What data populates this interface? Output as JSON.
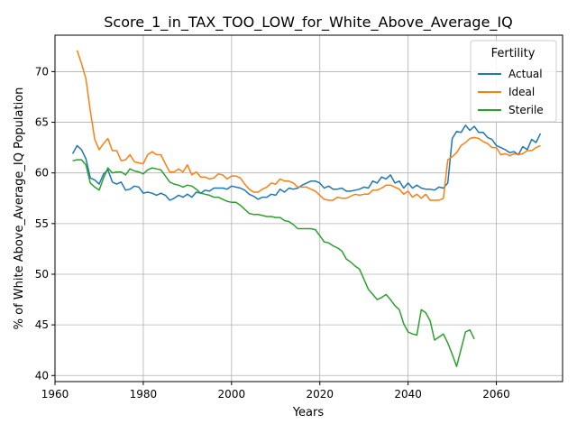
{
  "chart_data": {
    "type": "line",
    "title": "Score_1_in_TAX_TOO_LOW_for_White_Above_Average_IQ",
    "xlabel": "Years",
    "ylabel": "% of White Above_Average_IQ Population",
    "xlim": [
      1960,
      2075
    ],
    "ylim": [
      39.4,
      73.6
    ],
    "xticks": [
      1960,
      1980,
      2000,
      2020,
      2040,
      2060
    ],
    "yticks": [
      40,
      45,
      50,
      55,
      60,
      65,
      70
    ],
    "grid": true,
    "legend": {
      "title": "Fertility",
      "placement": "top-right"
    },
    "series": [
      {
        "name": "Actual",
        "color": "#1f77b4",
        "x": [
          1964,
          1965,
          1966,
          1967,
          1968,
          1969,
          1970,
          1971,
          1972,
          1973,
          1974,
          1975,
          1976,
          1977,
          1978,
          1979,
          1980,
          1981,
          1982,
          1983,
          1984,
          1985,
          1986,
          1987,
          1988,
          1989,
          1990,
          1991,
          1992,
          1993,
          1994,
          1995,
          1996,
          1997,
          1998,
          1999,
          2000,
          2001,
          2002,
          2003,
          2004,
          2005,
          2006,
          2007,
          2008,
          2009,
          2010,
          2011,
          2012,
          2013,
          2014,
          2015,
          2016,
          2017,
          2018,
          2019,
          2020,
          2021,
          2022,
          2023,
          2024,
          2025,
          2026,
          2027,
          2028,
          2029,
          2030,
          2031,
          2032,
          2033,
          2034,
          2035,
          2036,
          2037,
          2038,
          2039,
          2040,
          2041,
          2042,
          2043,
          2044,
          2045,
          2046,
          2047,
          2048,
          2049,
          2050,
          2051,
          2052,
          2053,
          2054,
          2055,
          2056,
          2057,
          2058,
          2059,
          2060,
          2061,
          2062,
          2063,
          2064,
          2065,
          2066,
          2067,
          2068,
          2069,
          2070
        ],
        "y": [
          61.9,
          62.7,
          62.3,
          61.4,
          59.5,
          59.3,
          58.9,
          59.9,
          60.3,
          59.1,
          58.9,
          59.1,
          58.3,
          58.4,
          58.7,
          58.6,
          58.0,
          58.1,
          58.0,
          57.8,
          58.0,
          57.8,
          57.3,
          57.5,
          57.8,
          57.6,
          57.9,
          57.6,
          58.1,
          58.0,
          58.3,
          58.2,
          58.5,
          58.5,
          58.5,
          58.4,
          58.7,
          58.6,
          58.5,
          58.3,
          57.9,
          57.7,
          57.4,
          57.6,
          57.6,
          57.9,
          57.8,
          58.4,
          58.1,
          58.5,
          58.4,
          58.5,
          58.8,
          59.0,
          59.2,
          59.2,
          59.0,
          58.5,
          58.7,
          58.4,
          58.4,
          58.5,
          58.2,
          58.2,
          58.3,
          58.4,
          58.6,
          58.5,
          59.2,
          59.0,
          59.6,
          59.4,
          59.8,
          59.0,
          59.2,
          58.5,
          59.0,
          58.5,
          58.8,
          58.5,
          58.4,
          58.4,
          58.3,
          58.6,
          58.5,
          59.0,
          63.4,
          64.1,
          64.0,
          64.7,
          64.2,
          64.6,
          64.0,
          64.0,
          63.5,
          63.3,
          62.7,
          62.5,
          62.3,
          62.0,
          62.1,
          61.8,
          62.6,
          62.3,
          63.3,
          63.0,
          63.9
        ]
      },
      {
        "name": "Ideal",
        "color": "#ff7f0e",
        "x": [
          1965,
          1966,
          1967,
          1968,
          1969,
          1970,
          1971,
          1972,
          1973,
          1974,
          1975,
          1976,
          1977,
          1978,
          1979,
          1980,
          1981,
          1982,
          1983,
          1984,
          1985,
          1986,
          1987,
          1988,
          1989,
          1990,
          1991,
          1992,
          1993,
          1994,
          1995,
          1996,
          1997,
          1998,
          1999,
          2000,
          2001,
          2002,
          2003,
          2004,
          2005,
          2006,
          2007,
          2008,
          2009,
          2010,
          2011,
          2012,
          2013,
          2014,
          2015,
          2016,
          2017,
          2018,
          2019,
          2020,
          2021,
          2022,
          2023,
          2024,
          2025,
          2026,
          2027,
          2028,
          2029,
          2030,
          2031,
          2032,
          2033,
          2034,
          2035,
          2036,
          2037,
          2038,
          2039,
          2040,
          2041,
          2042,
          2043,
          2044,
          2045,
          2046,
          2047,
          2048,
          2049,
          2050,
          2051,
          2052,
          2053,
          2054,
          2055,
          2056,
          2057,
          2058,
          2059,
          2060,
          2061,
          2062,
          2063,
          2064,
          2065,
          2066,
          2067,
          2068,
          2069,
          2070
        ],
        "y": [
          72.1,
          70.8,
          69.3,
          66.1,
          63.3,
          62.3,
          62.9,
          63.4,
          62.2,
          62.2,
          61.2,
          61.3,
          61.8,
          61.1,
          61.0,
          60.9,
          61.8,
          62.1,
          61.8,
          61.8,
          60.9,
          60.1,
          60.1,
          60.4,
          60.1,
          60.8,
          59.8,
          60.1,
          59.6,
          59.6,
          59.4,
          59.5,
          59.9,
          59.8,
          59.4,
          59.7,
          59.7,
          59.5,
          58.9,
          58.4,
          58.1,
          58.1,
          58.4,
          58.6,
          59.0,
          58.9,
          59.4,
          59.2,
          59.2,
          59.0,
          58.6,
          58.6,
          58.6,
          58.4,
          58.2,
          57.8,
          57.4,
          57.3,
          57.3,
          57.6,
          57.5,
          57.5,
          57.7,
          57.9,
          57.8,
          57.9,
          57.9,
          58.3,
          58.3,
          58.5,
          58.8,
          58.8,
          58.6,
          58.4,
          57.9,
          58.2,
          57.6,
          57.9,
          57.5,
          57.9,
          57.3,
          57.3,
          57.3,
          57.5,
          61.3,
          61.6,
          62.0,
          62.7,
          63.0,
          63.4,
          63.5,
          63.4,
          63.1,
          62.9,
          62.5,
          62.5,
          61.8,
          61.9,
          61.7,
          61.9,
          61.8,
          61.9,
          62.2,
          62.2,
          62.5,
          62.7
        ]
      },
      {
        "name": "Sterile",
        "color": "#2ca02c",
        "x": [
          1964,
          1965,
          1966,
          1967,
          1968,
          1969,
          1970,
          1971,
          1972,
          1973,
          1974,
          1975,
          1976,
          1977,
          1978,
          1979,
          1980,
          1981,
          1982,
          1983,
          1984,
          1985,
          1986,
          1987,
          1988,
          1989,
          1990,
          1991,
          1992,
          1993,
          1994,
          1995,
          1996,
          1997,
          1998,
          1999,
          2000,
          2001,
          2002,
          2003,
          2004,
          2005,
          2006,
          2007,
          2008,
          2009,
          2010,
          2011,
          2012,
          2013,
          2014,
          2015,
          2016,
          2017,
          2018,
          2019,
          2020,
          2021,
          2022,
          2023,
          2024,
          2025,
          2026,
          2027,
          2028,
          2029,
          2030,
          2031,
          2032,
          2033,
          2034,
          2035,
          2036,
          2037,
          2038,
          2039,
          2040,
          2041,
          2042,
          2043,
          2044,
          2045,
          2046,
          2047,
          2048,
          2049,
          2050,
          2051,
          2052,
          2053,
          2054,
          2055
        ],
        "y": [
          61.2,
          61.3,
          61.3,
          60.8,
          59.0,
          58.6,
          58.3,
          59.5,
          60.5,
          60.0,
          60.1,
          60.1,
          59.8,
          60.4,
          60.2,
          60.1,
          59.9,
          60.3,
          60.5,
          60.4,
          60.3,
          59.7,
          59.1,
          58.9,
          58.8,
          58.6,
          58.8,
          58.7,
          58.4,
          58.0,
          57.9,
          57.8,
          57.6,
          57.6,
          57.4,
          57.2,
          57.1,
          57.1,
          56.8,
          56.4,
          56.0,
          55.9,
          55.9,
          55.8,
          55.7,
          55.7,
          55.6,
          55.6,
          55.3,
          55.2,
          54.9,
          54.5,
          54.5,
          54.5,
          54.5,
          54.4,
          53.8,
          53.2,
          53.1,
          52.8,
          52.6,
          52.3,
          51.5,
          51.2,
          50.8,
          50.5,
          49.5,
          48.5,
          48.0,
          47.5,
          47.7,
          48.0,
          47.5,
          46.9,
          46.5,
          45.1,
          44.3,
          44.1,
          44.0,
          46.5,
          46.2,
          45.4,
          43.5,
          43.8,
          44.1,
          43.2,
          42.1,
          40.9,
          42.6,
          44.3,
          44.5,
          43.6
        ]
      }
    ]
  }
}
